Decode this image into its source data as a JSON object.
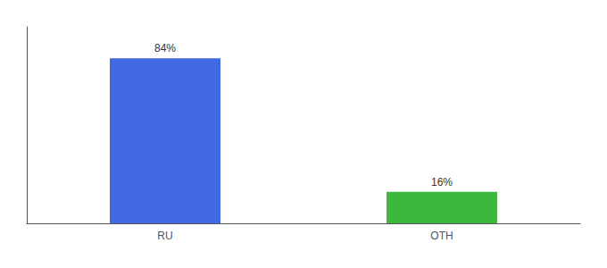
{
  "chart_data": {
    "type": "bar",
    "categories": [
      "RU",
      "OTH"
    ],
    "values": [
      84,
      16
    ],
    "value_labels": [
      "84%",
      "16%"
    ],
    "colors": [
      "#4169e1",
      "#3cb83c"
    ],
    "ylim": [
      0,
      100
    ],
    "data_labels": true,
    "tick_labels": "x",
    "grid": false
  }
}
